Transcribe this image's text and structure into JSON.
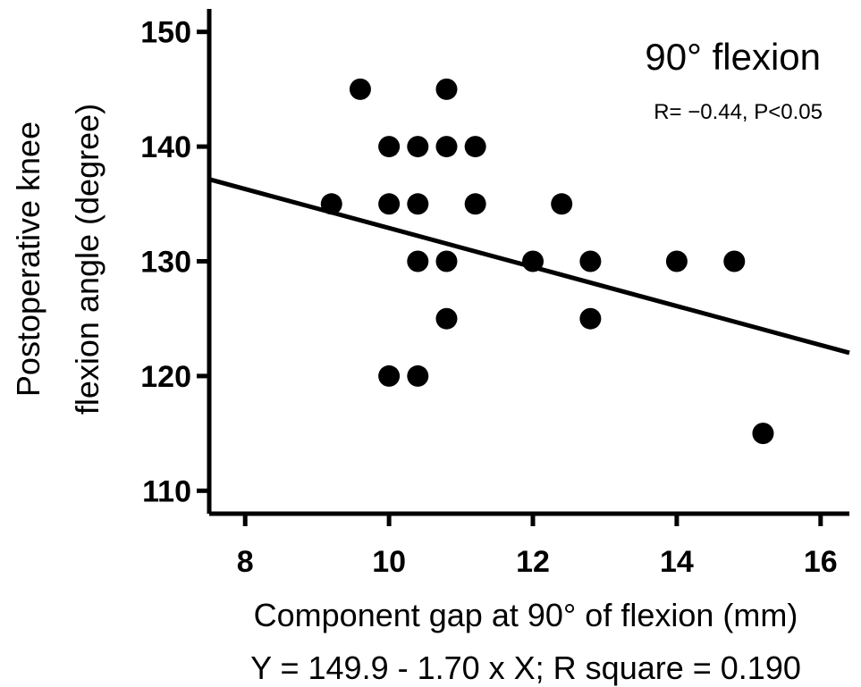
{
  "chart_data": {
    "type": "scatter",
    "title": "90° flexion",
    "annotation": "R= −0.44, P<0.05",
    "xlabel": "Component gap at 90° of flexion (mm)",
    "ylabel_line1": "Postoperative knee",
    "ylabel_line2": "flexion angle (degree)",
    "equation": "Y = 149.9 - 1.70 x X; R square = 0.190",
    "xlim": [
      7.5,
      16.4
    ],
    "ylim": [
      108,
      152
    ],
    "xticks": [
      8,
      10,
      12,
      14,
      16
    ],
    "yticks": [
      110,
      120,
      130,
      140,
      150
    ],
    "points": [
      {
        "x": 9.2,
        "y": 135
      },
      {
        "x": 9.6,
        "y": 145
      },
      {
        "x": 10.0,
        "y": 140
      },
      {
        "x": 10.0,
        "y": 135
      },
      {
        "x": 10.0,
        "y": 120
      },
      {
        "x": 10.4,
        "y": 140
      },
      {
        "x": 10.4,
        "y": 135
      },
      {
        "x": 10.4,
        "y": 130
      },
      {
        "x": 10.4,
        "y": 120
      },
      {
        "x": 10.8,
        "y": 145
      },
      {
        "x": 10.8,
        "y": 140
      },
      {
        "x": 10.8,
        "y": 130
      },
      {
        "x": 10.8,
        "y": 125
      },
      {
        "x": 11.2,
        "y": 140
      },
      {
        "x": 11.2,
        "y": 135
      },
      {
        "x": 12.0,
        "y": 130
      },
      {
        "x": 12.4,
        "y": 135
      },
      {
        "x": 12.8,
        "y": 130
      },
      {
        "x": 12.8,
        "y": 125
      },
      {
        "x": 14.0,
        "y": 130
      },
      {
        "x": 14.8,
        "y": 130
      },
      {
        "x": 15.2,
        "y": 115
      }
    ],
    "regression": {
      "intercept": 149.9,
      "slope": -1.7
    },
    "marker_color": "#000000",
    "grid": false
  }
}
